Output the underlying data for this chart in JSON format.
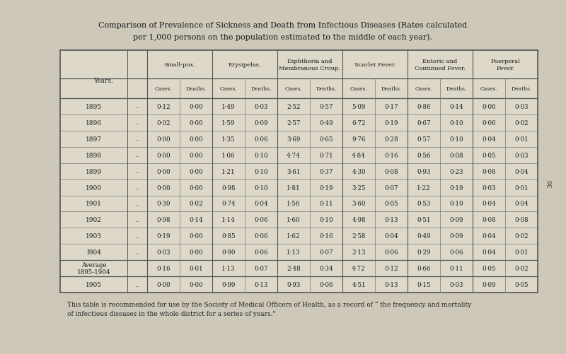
{
  "title_line1": "Comparison of Prevalence of Sickness and Death from Infectious Diseases (Rates calculated",
  "title_line2": "per 1,000 persons on the population estimated to the middle of each year).",
  "bg_color": "#cdc8b8",
  "table_bg": "#ddd8c8",
  "footer_line1": "This table is recommended for use by the Society of Medical Officers of Health, as a record of “ the frequency and mortality",
  "footer_line2": "of infectious diseases in the whole district for a series of years.\"",
  "col_groups": [
    {
      "name": "Small-pox.",
      "cols": [
        "Cases.",
        "Deaths."
      ]
    },
    {
      "name": "Erysipelas.",
      "cols": [
        "Cases.",
        "Deaths."
      ]
    },
    {
      "name": "Diphtheria and\nMembranous Croup.",
      "cols": [
        "Cases.",
        "Deaths."
      ]
    },
    {
      "name": "Scarlet Fever.",
      "cols": [
        "Cases.",
        "Deaths."
      ]
    },
    {
      "name": "Enteric and\nContinued Fever.",
      "cols": [
        "Cases.",
        "Deaths."
      ]
    },
    {
      "name": "Puerperal\nFever.",
      "cols": [
        "Cases.",
        "Deaths."
      ]
    }
  ],
  "rows": [
    {
      "year": "1895",
      "dots": true,
      "values": [
        "0·12",
        "0·00",
        "1·49",
        "0·03",
        "2·52",
        "0·57",
        "5·09",
        "0·17",
        "0·86",
        "0·14",
        "0·06",
        "0·03"
      ]
    },
    {
      "year": "1896",
      "dots": true,
      "values": [
        "0·02",
        "0·00",
        "1·59",
        "0·09",
        "2·57",
        "0·49",
        "6·72",
        "0·19",
        "0·67",
        "0·10",
        "0·06",
        "0·02"
      ]
    },
    {
      "year": "1897",
      "dots": true,
      "values": [
        "0·00",
        "0·00",
        "1·35",
        "0·06",
        "3·69",
        "0·65",
        "9·76",
        "0·28",
        "0·57",
        "0·10",
        "0·04",
        "0·01"
      ]
    },
    {
      "year": "1898",
      "dots": true,
      "values": [
        "0·00",
        "0·00",
        "1·06",
        "0·10",
        "4·74",
        "0·71",
        "4·84",
        "0·16",
        "0·56",
        "0·08",
        "0·05",
        "0·03"
      ]
    },
    {
      "year": "1899",
      "dots": true,
      "values": [
        "0·00",
        "0·00",
        "1·21",
        "0·10",
        "3·61",
        "0·37",
        "4·30",
        "0·08",
        "0·93",
        "0·23",
        "0·08",
        "0·04"
      ]
    },
    {
      "year": "1900",
      "dots": true,
      "values": [
        "0·00",
        "0·00",
        "0·98",
        "0·10",
        "1·81",
        "0·19",
        "3·25",
        "0·07",
        "1·22",
        "0·19",
        "0·03",
        "0·01"
      ]
    },
    {
      "year": "1901",
      "dots": true,
      "values": [
        "0·30",
        "0·02",
        "0·74",
        "0·04",
        "1·56",
        "0·11",
        "3·60",
        "0·05",
        "0·53",
        "0·10",
        "0·04",
        "0·04"
      ]
    },
    {
      "year": "1902",
      "dots": true,
      "values": [
        "0·98",
        "0·14",
        "1·14",
        "0·06",
        "1·60",
        "0·10",
        "4·98",
        "0·13",
        "0·51",
        "0·09",
        "0·08",
        "0·08"
      ]
    },
    {
      "year": "1903",
      "dots": true,
      "values": [
        "0·19",
        "0·00",
        "0·85",
        "0·06",
        "1·62",
        "0·16",
        "2·58",
        "0·04",
        "0·49",
        "0·09",
        "0·04",
        "0·02"
      ]
    },
    {
      "year": "I904",
      "dots": true,
      "values": [
        "0·03",
        "0·00",
        "0·90",
        "0·06",
        "1·13",
        "0·07",
        "2·13",
        "0·06",
        "0·29",
        "0·06",
        "0·04",
        "0·01"
      ]
    },
    {
      "year": "Average\n1895-1904",
      "dots": false,
      "values": [
        "0·16",
        "0·01",
        "1·13",
        "0·07",
        "2·48",
        "0·34",
        "4·72",
        "0·12",
        "0·66",
        "0·11",
        "0·05",
        "0·02"
      ]
    },
    {
      "year": "1905",
      "dots": true,
      "values": [
        "0·00",
        "0·00",
        "0·99",
        "0·13",
        "0·93",
        "0·06",
        "4·51",
        "0·13",
        "0·15",
        "0·03",
        "0·09",
        "0·05"
      ]
    }
  ]
}
